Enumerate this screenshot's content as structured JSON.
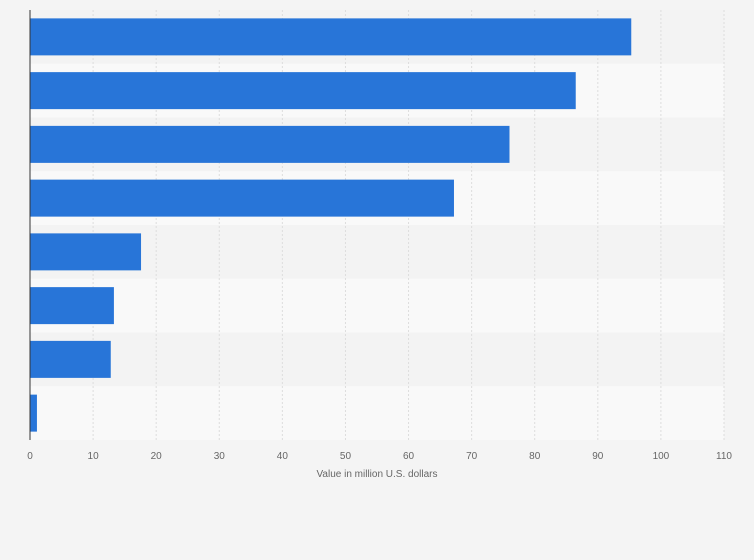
{
  "chart_data": {
    "type": "bar",
    "orientation": "horizontal",
    "title": "",
    "xlabel": "Value in million U.S. dollars",
    "ylabel": "",
    "categories": [
      "",
      "",
      "",
      "",
      "",
      "",
      "",
      ""
    ],
    "values": [
      95.3,
      86.5,
      76,
      67.2,
      17.6,
      13.3,
      12.8,
      1.1
    ],
    "xlim": [
      0,
      110
    ],
    "xticks": [
      "0",
      "10",
      "20",
      "30",
      "40",
      "50",
      "60",
      "70",
      "80",
      "90",
      "100",
      "110"
    ],
    "grid": true,
    "legend": "none",
    "colors": {
      "bar": "#2875d8",
      "background": "#f4f4f4",
      "band_light": "#f9f9f9",
      "band_dark": "#f3f3f3",
      "grid": "#dddddd",
      "axis": "#333333",
      "text": "#666666"
    }
  }
}
